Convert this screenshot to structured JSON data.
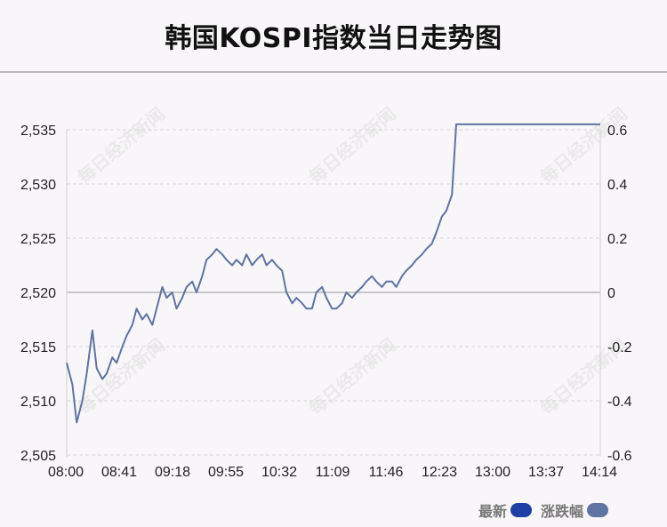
{
  "title": "韩国KOSPI指数当日走势图",
  "watermark": "每日经济新闻",
  "legend": [
    {
      "label": "最新",
      "color": "#1f3fa6"
    },
    {
      "label": "涨跌幅",
      "color": "#5f74a0"
    }
  ],
  "chart_data": {
    "type": "line",
    "title": "韩国KOSPI指数当日走势图",
    "x_ticks": [
      "08:00",
      "08:41",
      "09:18",
      "09:55",
      "10:32",
      "11:09",
      "11:46",
      "12:23",
      "13:00",
      "13:37",
      "14:14"
    ],
    "y_left_ticks": [
      "2,535",
      "2,530",
      "2,525",
      "2,520",
      "2,515",
      "2,510",
      "2,505"
    ],
    "y_right_ticks": [
      "0.6",
      "0.4",
      "0.2",
      "0",
      "-0.2",
      "-0.4",
      "-0.6"
    ],
    "ylim_left": [
      2505,
      2535
    ],
    "ylim_right": [
      -0.6,
      0.6
    ],
    "baseline": 2520,
    "grid": true,
    "legend_position": "bottom-right",
    "line_color": "#5f74a0",
    "series": [
      {
        "name": "最新",
        "x": [
          "08:00",
          "08:04",
          "08:07",
          "08:11",
          "08:14",
          "08:18",
          "08:21",
          "08:25",
          "08:28",
          "08:32",
          "08:35",
          "08:39",
          "08:42",
          "08:46",
          "08:49",
          "08:53",
          "08:56",
          "09:00",
          "09:03",
          "09:07",
          "09:10",
          "09:14",
          "09:17",
          "09:21",
          "09:24",
          "09:28",
          "09:31",
          "09:35",
          "09:38",
          "09:42",
          "09:45",
          "09:49",
          "09:52",
          "09:56",
          "09:59",
          "10:03",
          "10:06",
          "10:10",
          "10:13",
          "10:17",
          "10:20",
          "10:24",
          "10:27",
          "10:31",
          "10:34",
          "10:38",
          "10:41",
          "10:45",
          "10:48",
          "10:52",
          "10:55",
          "10:59",
          "11:02",
          "11:06",
          "11:09",
          "11:13",
          "11:16",
          "11:20",
          "11:23",
          "11:27",
          "11:30",
          "11:34",
          "11:37",
          "11:41",
          "11:44",
          "11:48",
          "11:51",
          "11:55",
          "11:58",
          "12:02",
          "12:05",
          "12:09",
          "12:12",
          "12:16",
          "12:19",
          "12:23",
          "12:26",
          "12:30",
          "12:33",
          "12:37",
          "12:40",
          "12:44",
          "12:47",
          "12:51",
          "12:54",
          "12:58",
          "13:01",
          "13:05",
          "13:08",
          "13:12",
          "13:15",
          "13:19",
          "13:22",
          "13:26",
          "13:29",
          "13:33",
          "13:36",
          "13:40",
          "13:43",
          "13:47",
          "13:50",
          "13:54",
          "13:57",
          "14:01",
          "14:04",
          "14:08",
          "14:11",
          "14:14"
        ],
        "values": [
          2513.5,
          2511.5,
          2508,
          2510,
          2512.5,
          2516.5,
          2513,
          2512,
          2512.5,
          2514,
          2513.5,
          2515,
          2516,
          2517,
          2518.5,
          2517.5,
          2518,
          2517,
          2518.5,
          2520.5,
          2519.5,
          2520,
          2518.5,
          2519.5,
          2520.5,
          2521,
          2520,
          2521.5,
          2523,
          2523.5,
          2524,
          2523.5,
          2523,
          2522.5,
          2523,
          2522.5,
          2523.5,
          2522.5,
          2523,
          2523.5,
          2522.5,
          2523,
          2522.5,
          2522,
          2520,
          2519,
          2519.5,
          2519,
          2518.5,
          2518.5,
          2520,
          2520.5,
          2519.5,
          2518.5,
          2518.5,
          2519,
          2520,
          2519.5,
          2520,
          2520.5,
          2521,
          2521.5,
          2521,
          2520.5,
          2521,
          2521,
          2520.5,
          2521.5,
          2522,
          2522.5,
          2523,
          2523.5,
          2524,
          2524.5,
          2525.5,
          2527,
          2527.5,
          2529,
          2535.5,
          2535.5,
          2535.5,
          2535.5,
          2535.5,
          2535.5,
          2535.5,
          2535.5,
          2535.5,
          2535.5,
          2535.5,
          2535.5,
          2535.5,
          2535.5,
          2535.5,
          2535.5,
          2535.5,
          2535.5,
          2535.5,
          2535.5,
          2535.5,
          2535.5,
          2535.5,
          2535.5,
          2535.5,
          2535.5,
          2535.5,
          2535.5,
          2535.5,
          2535.5
        ]
      }
    ]
  }
}
